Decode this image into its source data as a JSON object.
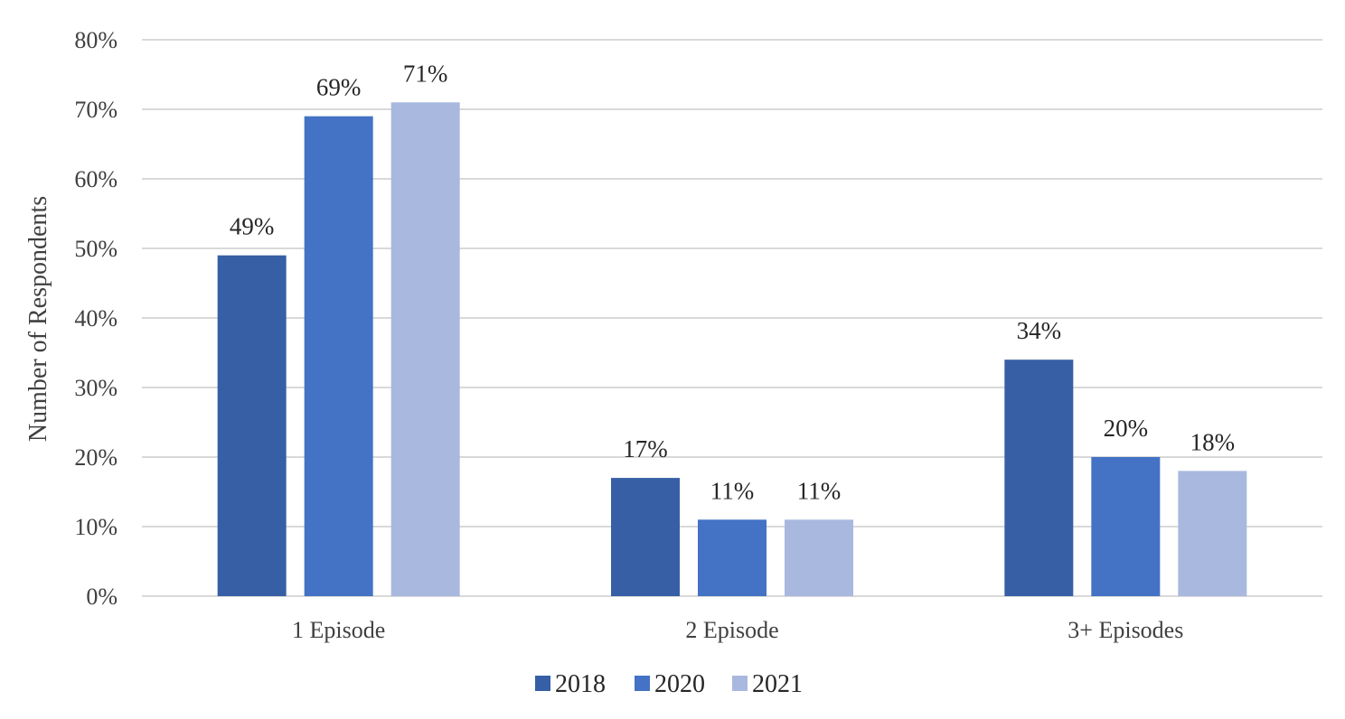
{
  "chart_data": {
    "type": "bar",
    "title": "",
    "xlabel": "",
    "ylabel": "Number of Respondents",
    "categories": [
      "1 Episode",
      "2 Episode",
      "3+ Episodes"
    ],
    "series": [
      {
        "name": "2018",
        "values": [
          49,
          17,
          34
        ],
        "labels": [
          "49%",
          "17%",
          "34%"
        ],
        "color": "#365fa5"
      },
      {
        "name": "2020",
        "values": [
          69,
          11,
          20
        ],
        "labels": [
          "69%",
          "11%",
          "20%"
        ],
        "color": "#4472c4"
      },
      {
        "name": "2021",
        "values": [
          71,
          11,
          18
        ],
        "labels": [
          "71%",
          "11%",
          "18%"
        ],
        "color": "#a9b8df"
      }
    ],
    "ylim": [
      0,
      80
    ],
    "yticks": [
      0,
      10,
      20,
      30,
      40,
      50,
      60,
      70,
      80
    ],
    "ytick_labels": [
      "0%",
      "10%",
      "20%",
      "30%",
      "40%",
      "50%",
      "60%",
      "70%",
      "80%"
    ],
    "grid": true,
    "gridline_color": "#d9d9d9",
    "legend_position": "bottom"
  }
}
